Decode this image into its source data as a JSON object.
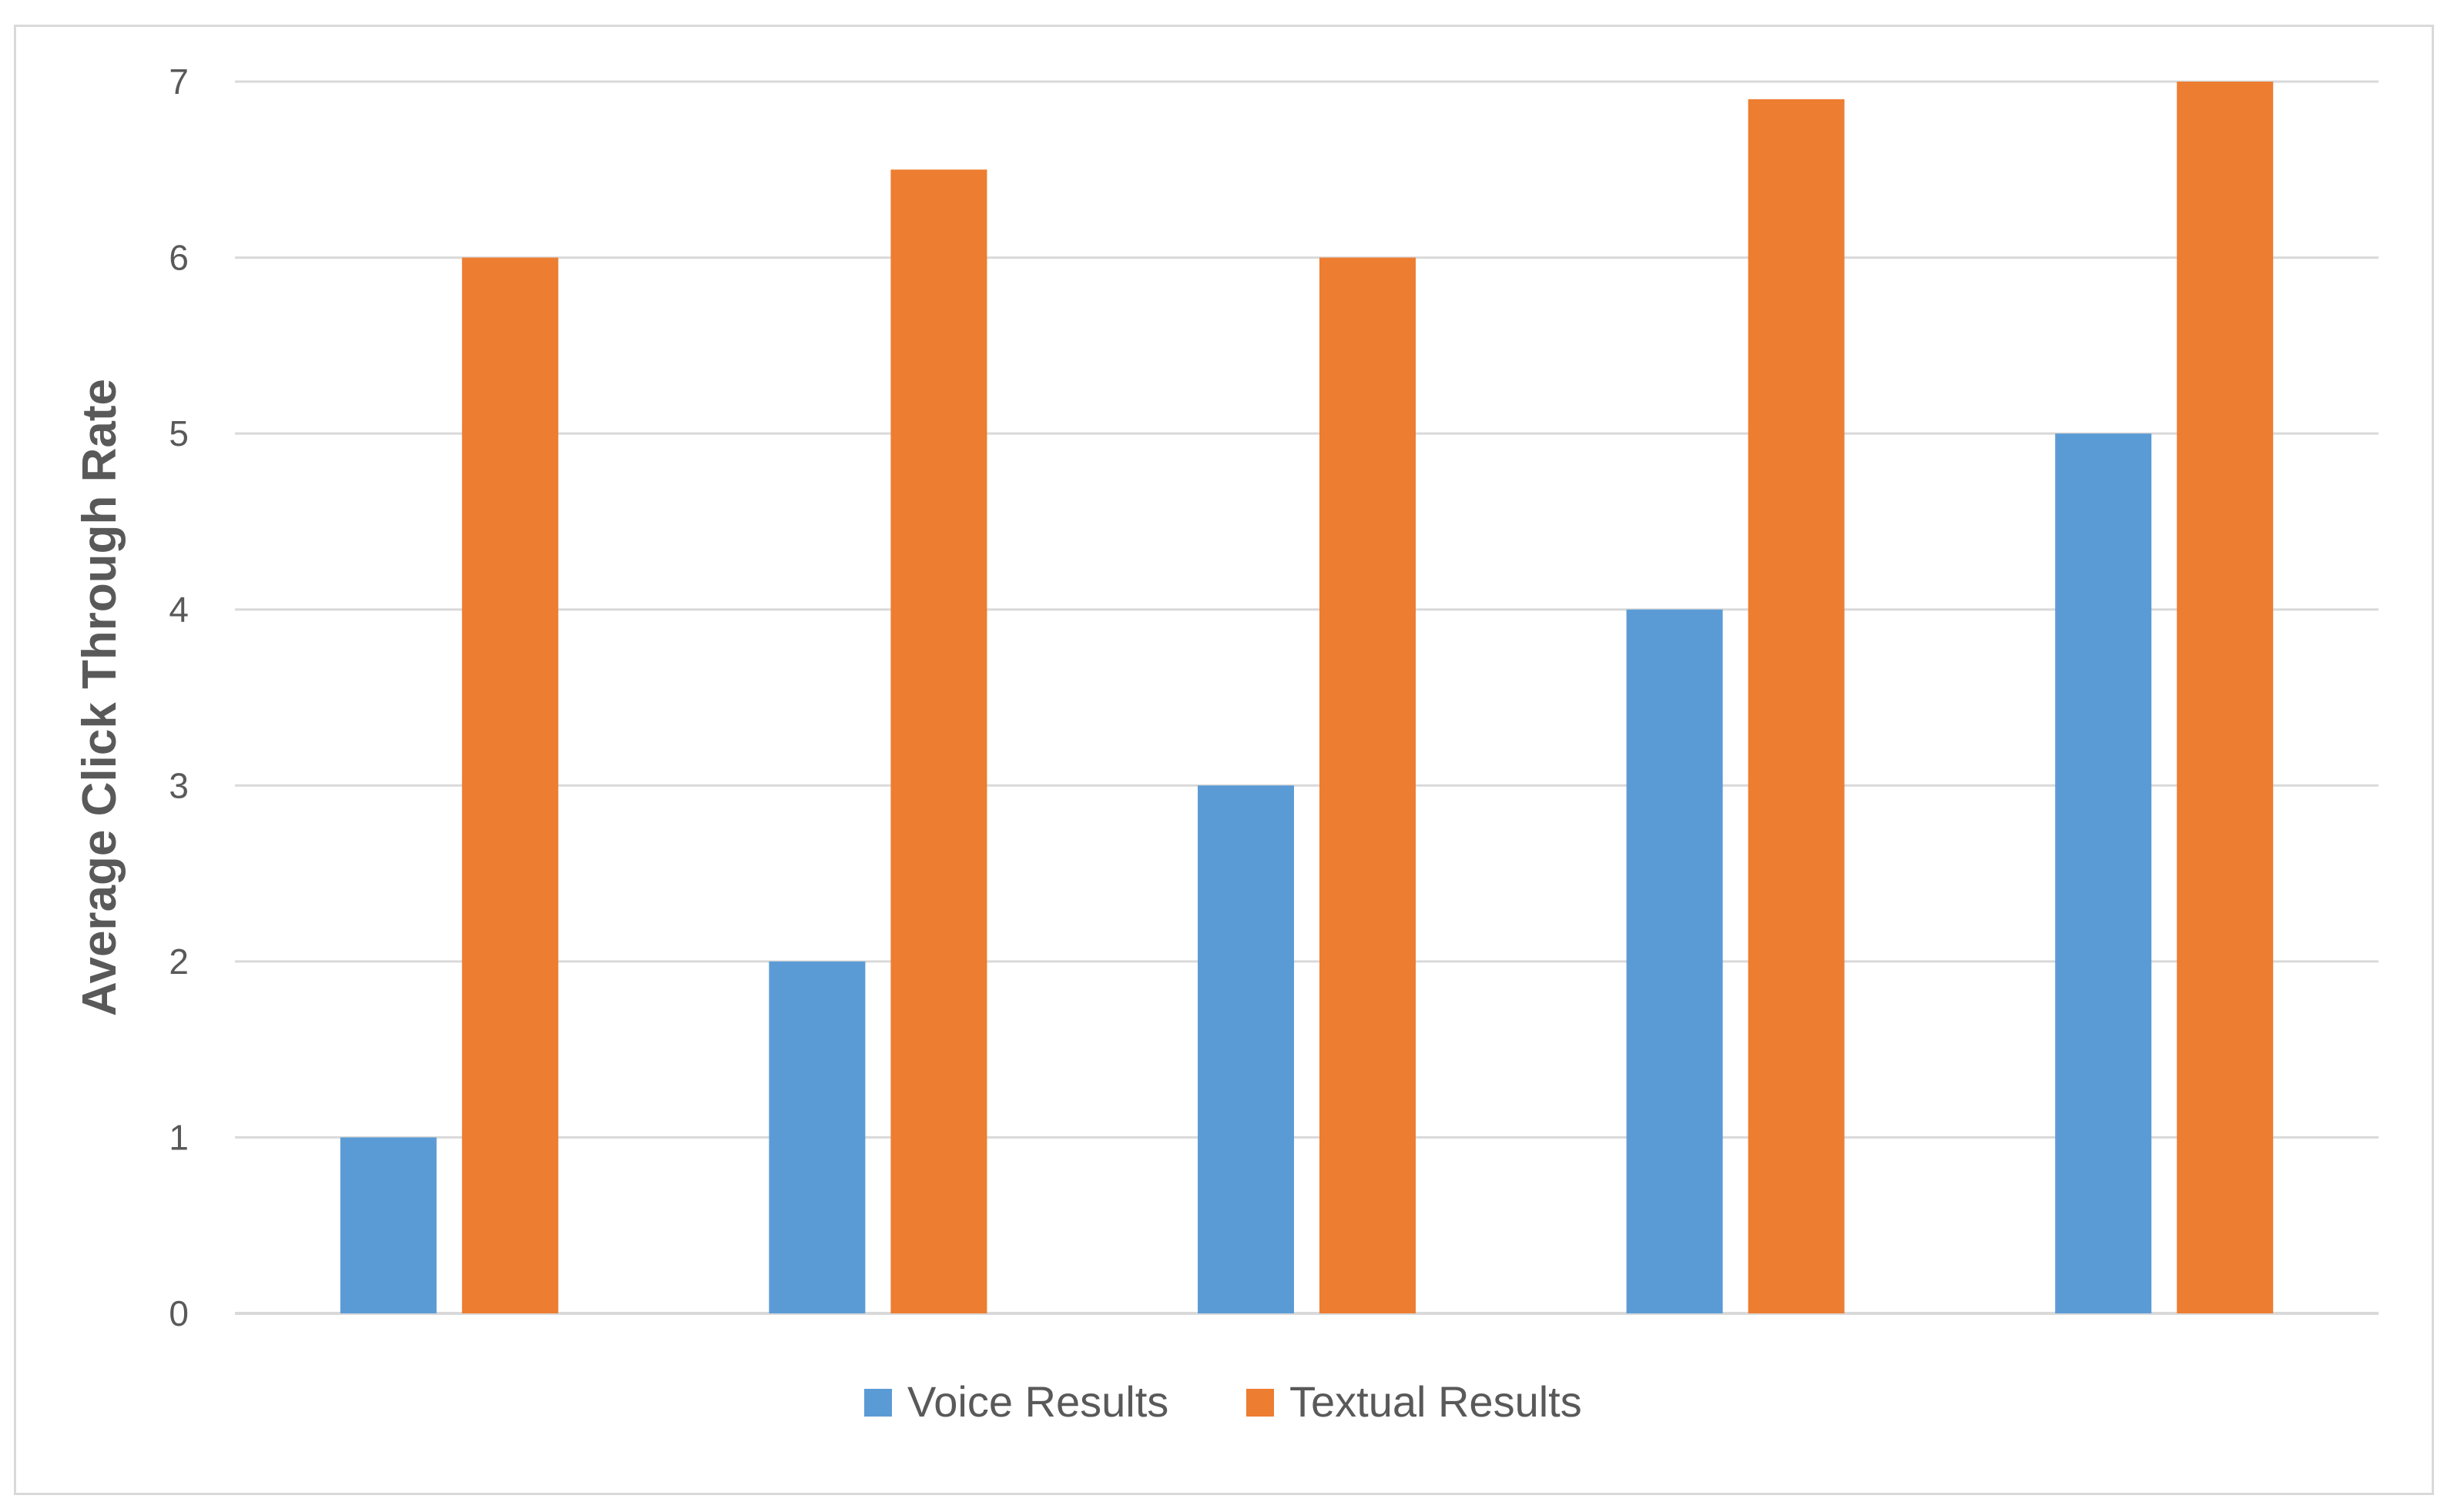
{
  "chart_data": {
    "type": "bar",
    "categories": [
      "",
      "",
      "",
      "",
      ""
    ],
    "series": [
      {
        "name": "Voice Results",
        "values": [
          1,
          2,
          3,
          4,
          5
        ],
        "color": "#5b9bd5"
      },
      {
        "name": "Textual Results",
        "values": [
          6,
          6.5,
          6,
          6.9,
          7
        ],
        "color": "#ed7d31"
      }
    ],
    "title": "",
    "xlabel": "",
    "ylabel": "Average Click Through Rate",
    "ylim": [
      0,
      7
    ],
    "yticks": [
      0,
      1,
      2,
      3,
      4,
      5,
      6,
      7
    ],
    "grid": true,
    "gridline_color": "#d9d9d9",
    "legend_position": "bottom"
  }
}
